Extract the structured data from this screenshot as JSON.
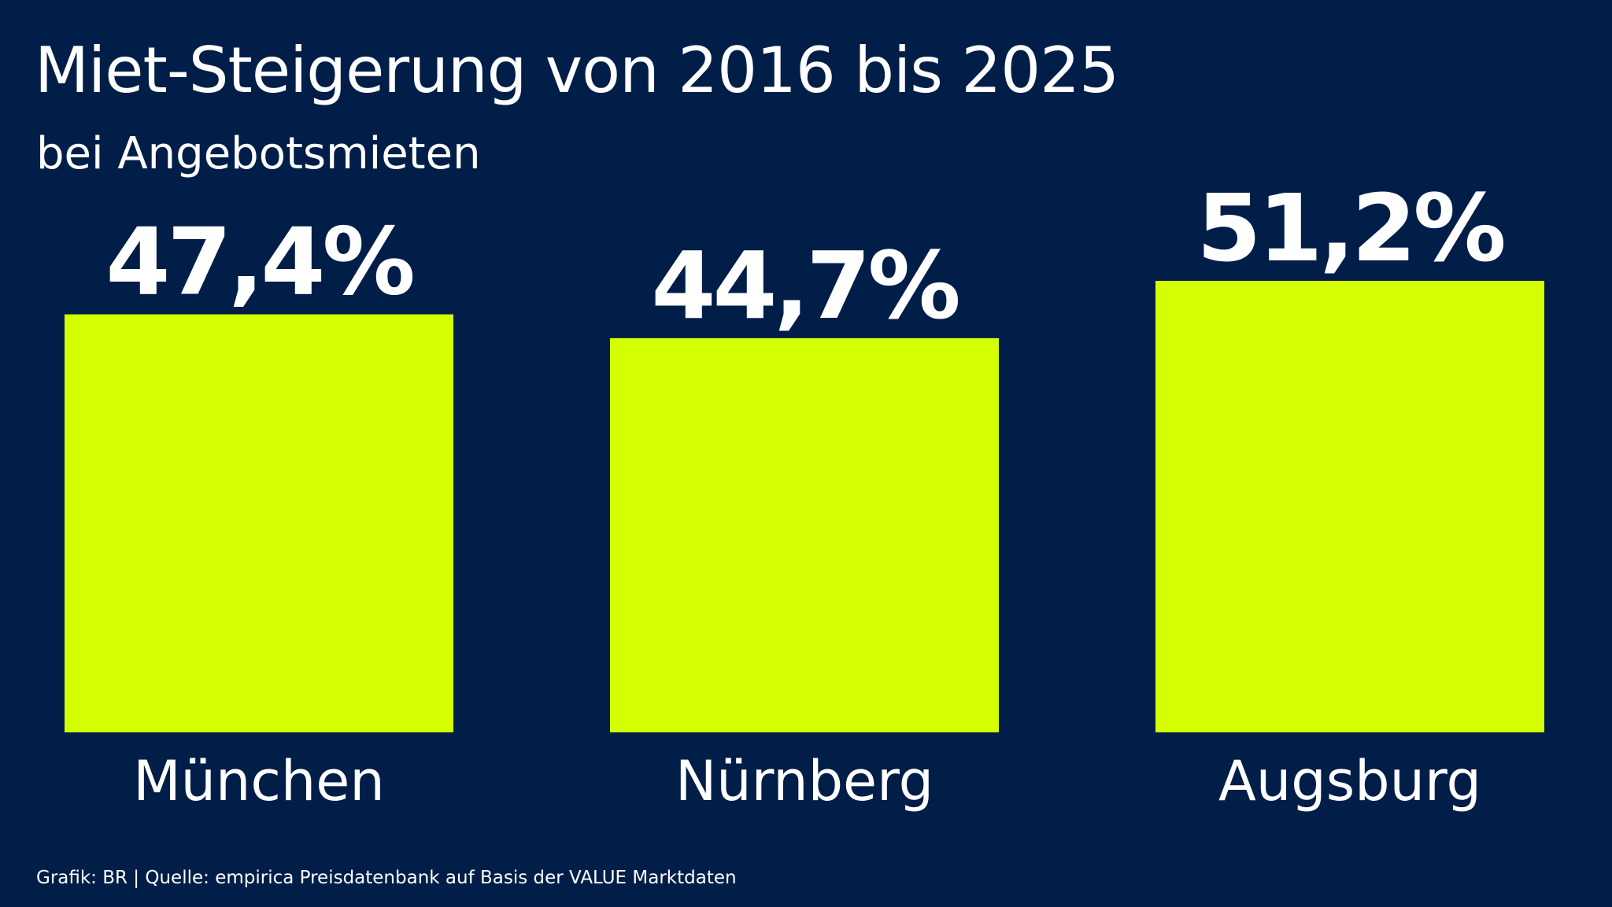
{
  "title": "Miet-Steigerung von 2016 bis 2025",
  "subtitle": "bei Angebotsmieten",
  "source": "Grafik: BR | Quelle: empirica Preisdatenbank auf Basis der VALUE Marktdaten",
  "colors": {
    "background": "#011e49",
    "bar": "#d4ff00",
    "text": "#ffffff"
  },
  "chart_data": {
    "type": "bar",
    "title": "Miet-Steigerung von 2016 bis 2025",
    "subtitle": "bei Angebotsmieten",
    "categories": [
      "München",
      "Nürnberg",
      "Augsburg"
    ],
    "values": [
      47.4,
      44.7,
      51.2
    ],
    "value_labels": [
      "47,4%",
      "44,7%",
      "51,2%"
    ],
    "xlabel": "",
    "ylabel": "",
    "unit": "%",
    "ylim": [
      0,
      51.2
    ],
    "grid": false,
    "legend": "none"
  }
}
